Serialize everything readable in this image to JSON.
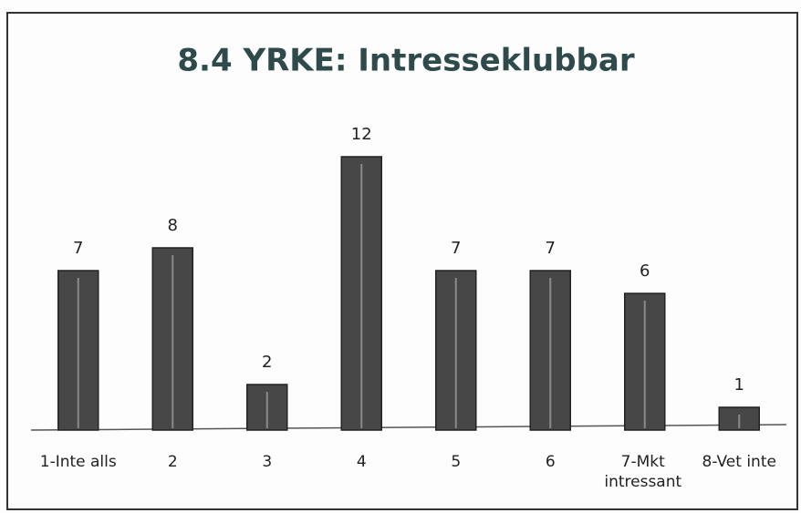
{
  "chart_data": {
    "type": "bar",
    "title": "8.4 YRKE: Intresseklubbar",
    "categories": [
      "1-Inte alls",
      "2",
      "3",
      "4",
      "5",
      "6",
      "7-Mkt intressant",
      "8-Vet inte"
    ],
    "values": [
      7,
      8,
      2,
      12,
      7,
      7,
      6,
      1
    ],
    "color": "#474747"
  }
}
